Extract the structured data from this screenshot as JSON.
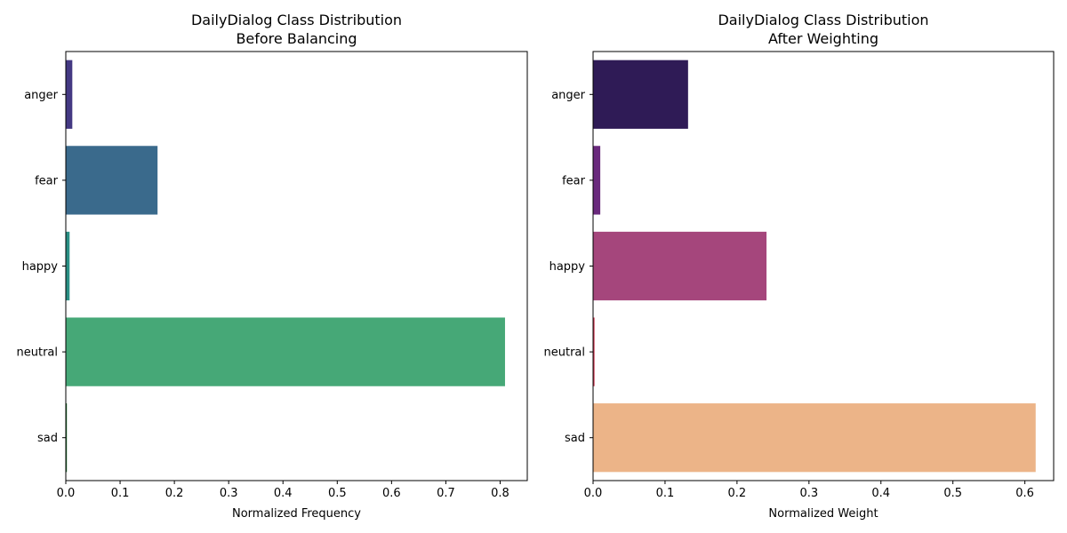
{
  "chart_data": [
    {
      "type": "bar",
      "orientation": "horizontal",
      "title": "DailyDialog Class Distribution\nBefore Balancing",
      "title_lines": [
        "DailyDialog Class Distribution",
        "Before Balancing"
      ],
      "categories": [
        "anger",
        "fear",
        "happy",
        "neutral",
        "sad"
      ],
      "values": [
        0.012,
        0.169,
        0.007,
        0.809,
        0.002
      ],
      "colors": [
        "#443983",
        "#3a6a8c",
        "#2a8f84",
        "#46a877",
        "#1a6b2a"
      ],
      "xlabel": "Normalized Frequency",
      "ylabel": "",
      "xlim": [
        0,
        0.85
      ],
      "xticks": [
        0.0,
        0.1,
        0.2,
        0.3,
        0.4,
        0.5,
        0.6,
        0.7,
        0.8
      ],
      "xtick_labels": [
        "0.0",
        "0.1",
        "0.2",
        "0.3",
        "0.4",
        "0.5",
        "0.6",
        "0.7",
        "0.8"
      ],
      "grid": false
    },
    {
      "type": "bar",
      "orientation": "horizontal",
      "title": "DailyDialog Class Distribution\nAfter Weighting",
      "title_lines": [
        "DailyDialog Class Distribution",
        "After Weighting"
      ],
      "categories": [
        "anger",
        "fear",
        "happy",
        "neutral",
        "sad"
      ],
      "values": [
        0.132,
        0.01,
        0.241,
        0.002,
        0.615
      ],
      "colors": [
        "#2f1b56",
        "#6a2a7d",
        "#a5467c",
        "#c8324d",
        "#ecb488"
      ],
      "xlabel": "Normalized Weight",
      "ylabel": "",
      "xlim": [
        0,
        0.64
      ],
      "xticks": [
        0.0,
        0.1,
        0.2,
        0.3,
        0.4,
        0.5,
        0.6
      ],
      "xtick_labels": [
        "0.0",
        "0.1",
        "0.2",
        "0.3",
        "0.4",
        "0.5",
        "0.6"
      ],
      "grid": false
    }
  ]
}
